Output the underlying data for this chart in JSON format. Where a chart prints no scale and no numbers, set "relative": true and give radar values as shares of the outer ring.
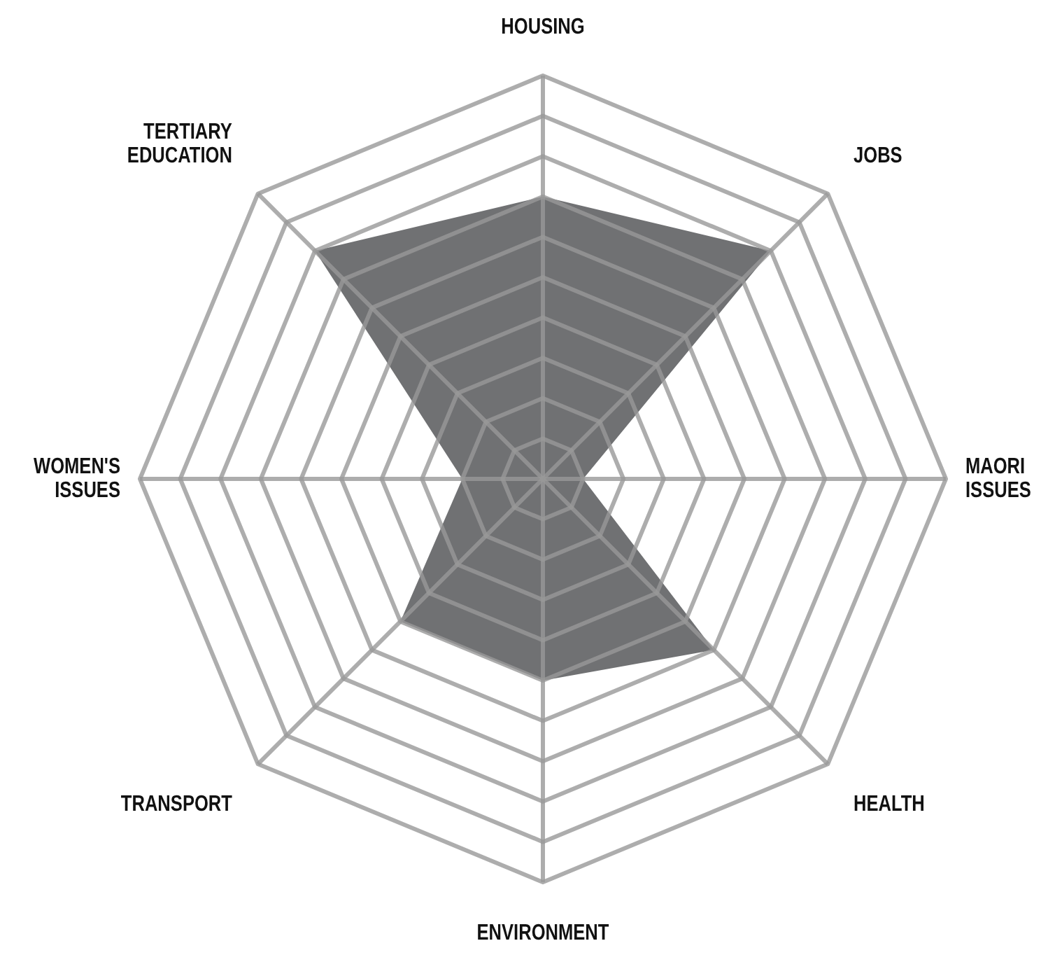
{
  "chart_data": {
    "type": "radar",
    "relative": true,
    "categories": [
      "HOUSING",
      "JOBS",
      "MAORI ISSUES",
      "HEALTH",
      "ENVIRONMENT",
      "TRANSPORT",
      "WOMEN'S ISSUES",
      "TERTIARY EDUCATION"
    ],
    "series": [
      {
        "color": "#646567",
        "values": [
          0.7,
          0.8,
          0.1,
          0.6,
          0.5,
          0.5,
          0.2,
          0.8
        ]
      }
    ]
  }
}
